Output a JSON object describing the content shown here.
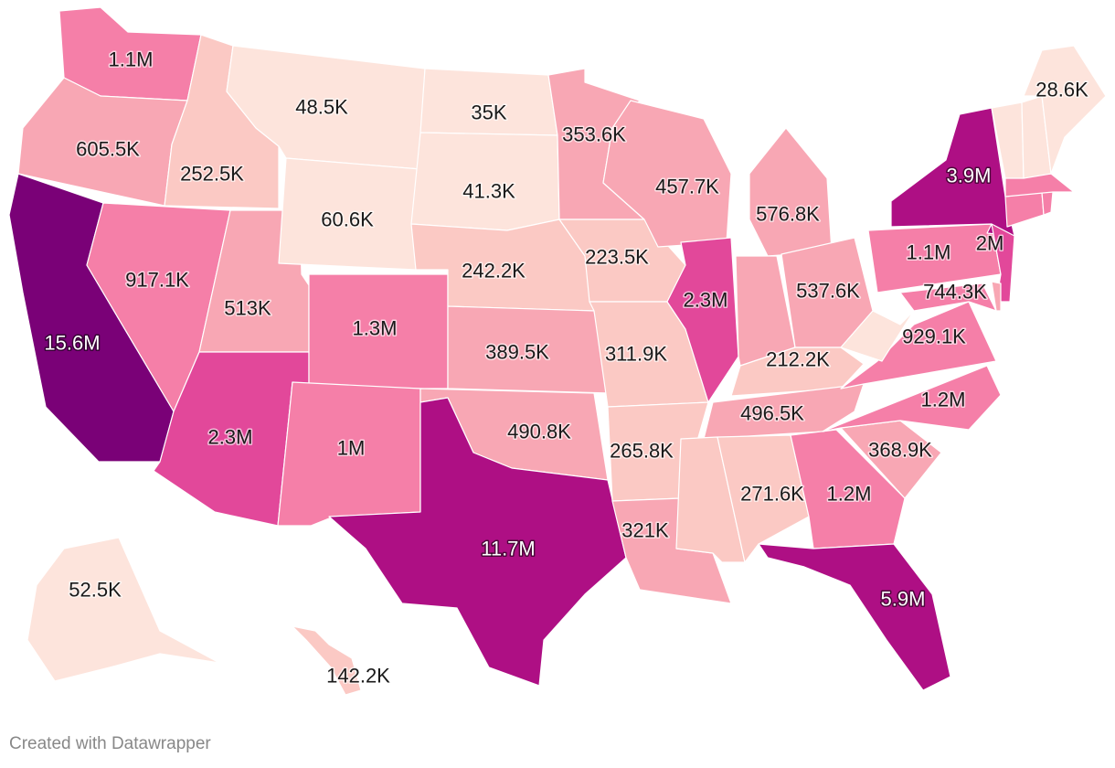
{
  "credit": "Created with Datawrapper",
  "color_scale": [
    "#fde4dc",
    "#fbc9c4",
    "#f8a7b4",
    "#f57fa8",
    "#e2489a",
    "#ae0f84",
    "#7a0177"
  ],
  "states": [
    {
      "id": "WA",
      "label": "1.1M",
      "level": 3
    },
    {
      "id": "OR",
      "label": "605.5K",
      "level": 2
    },
    {
      "id": "CA",
      "label": "15.6M",
      "level": 6
    },
    {
      "id": "ID",
      "label": "252.5K",
      "level": 1
    },
    {
      "id": "NV",
      "label": "917.1K",
      "level": 3
    },
    {
      "id": "UT",
      "label": "513K",
      "level": 2
    },
    {
      "id": "AZ",
      "label": "2.3M",
      "level": 4
    },
    {
      "id": "MT",
      "label": "48.5K",
      "level": 0
    },
    {
      "id": "WY",
      "label": "60.6K",
      "level": 0
    },
    {
      "id": "CO",
      "label": "1.3M",
      "level": 3
    },
    {
      "id": "NM",
      "label": "1M",
      "level": 3
    },
    {
      "id": "ND",
      "label": "35K",
      "level": 0
    },
    {
      "id": "SD",
      "label": "41.3K",
      "level": 0
    },
    {
      "id": "NE",
      "label": "242.2K",
      "level": 1
    },
    {
      "id": "KS",
      "label": "389.5K",
      "level": 2
    },
    {
      "id": "OK",
      "label": "490.8K",
      "level": 2
    },
    {
      "id": "TX",
      "label": "11.7M",
      "level": 5
    },
    {
      "id": "MN",
      "label": "353.6K",
      "level": 2
    },
    {
      "id": "IA",
      "label": "223.5K",
      "level": 1
    },
    {
      "id": "MO",
      "label": "311.9K",
      "level": 1
    },
    {
      "id": "AR",
      "label": "265.8K",
      "level": 1
    },
    {
      "id": "LA",
      "label": "321K",
      "level": 2
    },
    {
      "id": "WI",
      "label": "457.7K",
      "level": 2
    },
    {
      "id": "IL",
      "label": "2.3M",
      "level": 4
    },
    {
      "id": "MI",
      "label": "576.8K",
      "level": 2
    },
    {
      "id": "IN",
      "label": "",
      "level": 2
    },
    {
      "id": "OH",
      "label": "537.6K",
      "level": 2
    },
    {
      "id": "KY",
      "label": "212.2K",
      "level": 1
    },
    {
      "id": "TN",
      "label": "496.5K",
      "level": 2
    },
    {
      "id": "MS",
      "label": "",
      "level": 1
    },
    {
      "id": "AL",
      "label": "271.6K",
      "level": 1
    },
    {
      "id": "GA",
      "label": "1.2M",
      "level": 3
    },
    {
      "id": "FL",
      "label": "5.9M",
      "level": 5
    },
    {
      "id": "SC",
      "label": "368.9K",
      "level": 2
    },
    {
      "id": "NC",
      "label": "1.2M",
      "level": 3
    },
    {
      "id": "VA",
      "label": "929.1K",
      "level": 3
    },
    {
      "id": "WV",
      "label": "",
      "level": 0
    },
    {
      "id": "PA",
      "label": "1.1M",
      "level": 3
    },
    {
      "id": "NY",
      "label": "3.9M",
      "level": 5
    },
    {
      "id": "NJ",
      "label": "2M",
      "level": 4
    },
    {
      "id": "MD",
      "label": "744.3K",
      "level": 3
    },
    {
      "id": "DE",
      "label": "",
      "level": 2
    },
    {
      "id": "CT",
      "label": "",
      "level": 3
    },
    {
      "id": "RI",
      "label": "",
      "level": 3
    },
    {
      "id": "MA",
      "label": "",
      "level": 3
    },
    {
      "id": "VT",
      "label": "",
      "level": 0
    },
    {
      "id": "NH",
      "label": "",
      "level": 0
    },
    {
      "id": "ME",
      "label": "28.6K",
      "level": 0
    },
    {
      "id": "AK",
      "label": "52.5K",
      "level": 0
    },
    {
      "id": "HI",
      "label": "142.2K",
      "level": 1
    }
  ]
}
